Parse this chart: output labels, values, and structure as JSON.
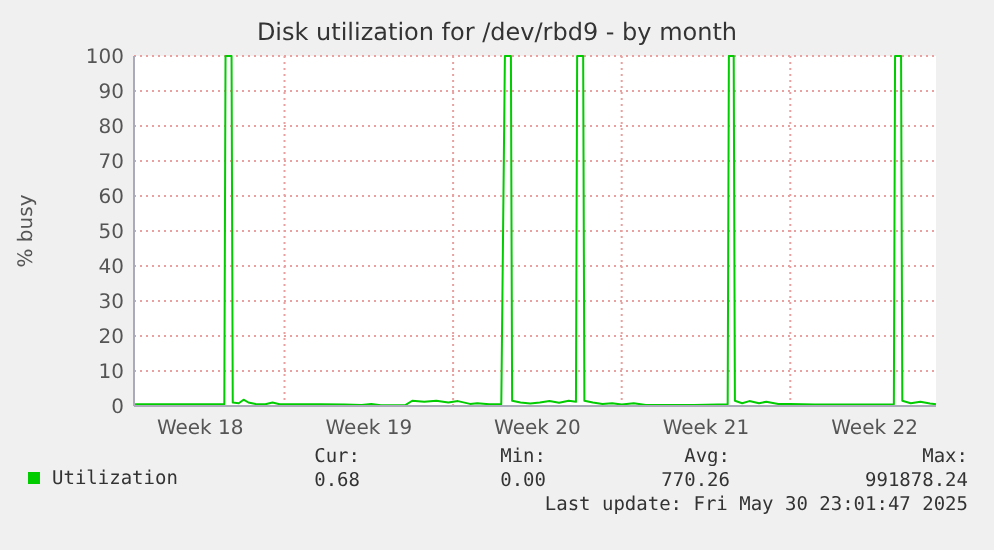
{
  "chart_data": {
    "type": "line",
    "title": "Disk utilization for /dev/rbd9 - by month",
    "ylabel": "% busy",
    "x": [
      "2025-04-28T18:00",
      "2025-04-29T12:00",
      "2025-04-30T12:00",
      "2025-05-01T12:00",
      "2025-05-02T12:00",
      "2025-05-02T13:12",
      "2025-05-02T19:12",
      "2025-05-02T20:24",
      "2025-05-03T02:24",
      "2025-05-03T07:12",
      "2025-05-03T12:00",
      "2025-05-03T19:12",
      "2025-05-04T04:48",
      "2025-05-04T12:00",
      "2025-05-04T19:12",
      "2025-05-05T12:00",
      "2025-05-06T12:00",
      "2025-05-07T12:00",
      "2025-05-08T04:48",
      "2025-05-08T14:24",
      "2025-05-09T00:00",
      "2025-05-09T12:00",
      "2025-05-10T00:00",
      "2025-05-10T07:12",
      "2025-05-10T19:12",
      "2025-05-11T07:12",
      "2025-05-11T19:12",
      "2025-05-12T04:48",
      "2025-05-12T16:48",
      "2025-05-13T00:00",
      "2025-05-13T12:00",
      "2025-05-14T00:00",
      "2025-05-14T03:36",
      "2025-05-14T09:36",
      "2025-05-14T10:48",
      "2025-05-14T19:12",
      "2025-05-15T04:48",
      "2025-05-15T14:24",
      "2025-05-16T00:00",
      "2025-05-16T09:36",
      "2025-05-16T19:12",
      "2025-05-17T02:24",
      "2025-05-17T03:36",
      "2025-05-17T09:36",
      "2025-05-17T10:48",
      "2025-05-17T19:12",
      "2025-05-18T04:48",
      "2025-05-18T14:24",
      "2025-05-19T00:00",
      "2025-05-19T12:00",
      "2025-05-20T00:00",
      "2025-05-21T00:00",
      "2025-05-22T00:00",
      "2025-05-23T00:00",
      "2025-05-23T09:36",
      "2025-05-23T10:48",
      "2025-05-23T15:36",
      "2025-05-23T16:48",
      "2025-05-24T00:00",
      "2025-05-24T07:12",
      "2025-05-24T16:48",
      "2025-05-25T00:00",
      "2025-05-25T12:00",
      "2025-05-26T00:00",
      "2025-05-27T00:00",
      "2025-05-28T00:00",
      "2025-05-29T00:00",
      "2025-05-30T00:00",
      "2025-05-30T07:12",
      "2025-05-30T08:24",
      "2025-05-30T14:24",
      "2025-05-30T15:36",
      "2025-05-31T00:00",
      "2025-05-31T09:36",
      "2025-05-31T19:12",
      "2025-06-01T01:12"
    ],
    "series": [
      {
        "name": "Utilization",
        "color": "#00cc00",
        "values": [
          0.5,
          0.5,
          0.5,
          0.5,
          0.5,
          100,
          100,
          1,
          0.8,
          1.8,
          1,
          0.6,
          0.5,
          1,
          0.5,
          0.5,
          0.5,
          0.4,
          0.3,
          0.6,
          0.2,
          0.2,
          0.2,
          1.5,
          1.2,
          1.5,
          1.0,
          1.4,
          0.6,
          0.8,
          0.5,
          0.5,
          100,
          100,
          1.5,
          1,
          0.7,
          1,
          1.4,
          0.9,
          1.5,
          1.2,
          100,
          100,
          1.5,
          1,
          0.6,
          0.8,
          0.4,
          0.8,
          0.3,
          0.3,
          0.3,
          0.4,
          0.5,
          100,
          100,
          1.5,
          0.8,
          1.4,
          0.8,
          1.2,
          0.6,
          0.6,
          0.4,
          0.4,
          0.4,
          0.4,
          0.5,
          100,
          100,
          1.5,
          0.8,
          1.2,
          0.7,
          0.5
        ]
      }
    ],
    "xlim": [
      "2025-04-28T18:00",
      "2025-06-01T01:12"
    ],
    "xticks": [
      {
        "value": "2025-05-01T12:00",
        "label": "Week 18"
      },
      {
        "value": "2025-05-05T00:00",
        "label": null
      },
      {
        "value": "2025-05-08T12:00",
        "label": "Week 19"
      },
      {
        "value": "2025-05-12T00:00",
        "label": null
      },
      {
        "value": "2025-05-15T12:00",
        "label": "Week 20"
      },
      {
        "value": "2025-05-19T00:00",
        "label": null
      },
      {
        "value": "2025-05-22T12:00",
        "label": "Week 21"
      },
      {
        "value": "2025-05-26T00:00",
        "label": null
      },
      {
        "value": "2025-05-29T12:00",
        "label": "Week 22"
      }
    ],
    "ylim": [
      0,
      100
    ],
    "yticks": [
      0,
      10,
      20,
      30,
      40,
      50,
      60,
      70,
      80,
      90,
      100
    ],
    "grid": true,
    "legend": "bottom",
    "annotations": [
      "Cur:",
      "Min:",
      "Avg:",
      "Max:",
      "0.68",
      "0.00",
      "770.26",
      "991878.24",
      "Last update: Fri May 30 23:01:47 2025"
    ]
  }
}
